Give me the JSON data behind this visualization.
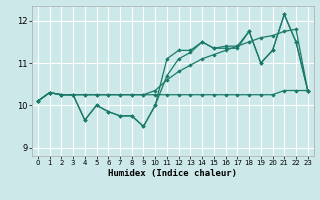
{
  "xlabel": "Humidex (Indice chaleur)",
  "xlim": [
    -0.5,
    23.5
  ],
  "ylim": [
    8.8,
    12.35
  ],
  "yticks": [
    9,
    10,
    11,
    12
  ],
  "xticks": [
    0,
    1,
    2,
    3,
    4,
    5,
    6,
    7,
    8,
    9,
    10,
    11,
    12,
    13,
    14,
    15,
    16,
    17,
    18,
    19,
    20,
    21,
    22,
    23
  ],
  "bg_color": "#cce8e8",
  "grid_color": "#ffffff",
  "line_color": "#1a7a6a",
  "series": [
    {
      "x": [
        0,
        1,
        2,
        3,
        4,
        5,
        6,
        7,
        8,
        9,
        10,
        11,
        12,
        13,
        14,
        15,
        16,
        17,
        18,
        19,
        20,
        21,
        22,
        23
      ],
      "y": [
        10.1,
        10.3,
        10.25,
        10.25,
        9.65,
        10.0,
        9.85,
        9.75,
        9.75,
        9.5,
        10.0,
        10.7,
        11.1,
        11.25,
        11.5,
        11.35,
        11.35,
        11.35,
        11.75,
        11.0,
        11.3,
        12.15,
        11.5,
        10.35
      ]
    },
    {
      "x": [
        0,
        1,
        2,
        3,
        4,
        5,
        6,
        7,
        8,
        9,
        10,
        11,
        12,
        13,
        14,
        15,
        16,
        17,
        18,
        19,
        20,
        21,
        22,
        23
      ],
      "y": [
        10.1,
        10.3,
        10.25,
        10.25,
        10.25,
        10.25,
        10.25,
        10.25,
        10.25,
        10.25,
        10.35,
        10.6,
        10.8,
        10.95,
        11.1,
        11.2,
        11.3,
        11.4,
        11.5,
        11.6,
        11.65,
        11.75,
        11.8,
        10.35
      ]
    },
    {
      "x": [
        0,
        1,
        2,
        3,
        4,
        5,
        6,
        7,
        8,
        9,
        10,
        11,
        12,
        13,
        14,
        15,
        16,
        17,
        18,
        19,
        20,
        21,
        22,
        23
      ],
      "y": [
        10.1,
        10.3,
        10.25,
        10.25,
        9.65,
        10.0,
        9.85,
        9.75,
        9.75,
        9.5,
        10.0,
        11.1,
        11.3,
        11.3,
        11.5,
        11.35,
        11.4,
        11.4,
        11.75,
        11.0,
        11.3,
        12.15,
        11.5,
        10.35
      ]
    },
    {
      "x": [
        0,
        1,
        2,
        3,
        4,
        5,
        6,
        7,
        8,
        9,
        10,
        11,
        12,
        13,
        14,
        15,
        16,
        17,
        18,
        19,
        20,
        21,
        22,
        23
      ],
      "y": [
        10.1,
        10.3,
        10.25,
        10.25,
        10.25,
        10.25,
        10.25,
        10.25,
        10.25,
        10.25,
        10.25,
        10.25,
        10.25,
        10.25,
        10.25,
        10.25,
        10.25,
        10.25,
        10.25,
        10.25,
        10.25,
        10.35,
        10.35,
        10.35
      ]
    }
  ]
}
